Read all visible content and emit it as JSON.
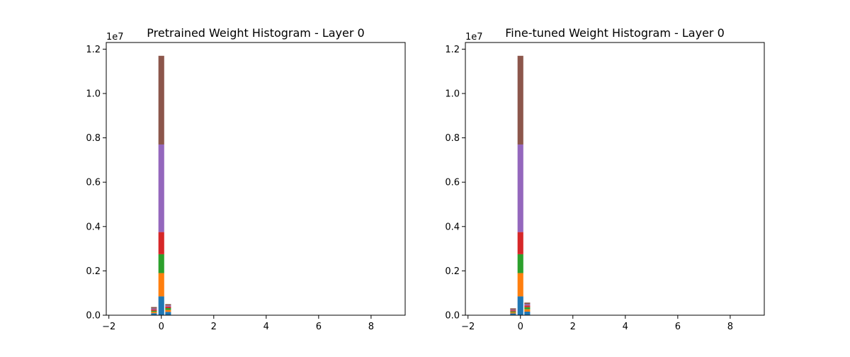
{
  "colors": [
    "#1f77b4",
    "#ff7f0e",
    "#2ca02c",
    "#d62728",
    "#9467bd",
    "#8c564b"
  ],
  "chart_data": [
    {
      "type": "bar",
      "stacked": true,
      "title": "Pretrained Weight Histogram - Layer 0",
      "xlabel": "",
      "ylabel": "",
      "xlim": [
        -2.1,
        9.3
      ],
      "ylim": [
        0,
        12300000.0
      ],
      "xticks": [
        -2,
        0,
        2,
        4,
        6,
        8
      ],
      "xtick_labels": [
        "−2",
        "0",
        "2",
        "4",
        "6",
        "8"
      ],
      "yticks": [
        0,
        0.2,
        0.4,
        0.6,
        0.8,
        1.0,
        1.2
      ],
      "ytick_labels": [
        "0.0",
        "0.2",
        "0.4",
        "0.6",
        "0.8",
        "1.0",
        "1.2"
      ],
      "y_offset_label": "1e7",
      "bin_width": 0.22,
      "bins": [
        -0.28,
        0.0,
        0.26
      ],
      "series": [
        {
          "values": [
            90000,
            850000,
            150000
          ]
        },
        {
          "values": [
            60000,
            1050000,
            90000
          ]
        },
        {
          "values": [
            50000,
            850000,
            80000
          ]
        },
        {
          "values": [
            60000,
            1000000,
            70000
          ]
        },
        {
          "values": [
            40000,
            3950000,
            50000
          ]
        },
        {
          "values": [
            70000,
            4000000,
            60000
          ]
        }
      ]
    },
    {
      "type": "bar",
      "stacked": true,
      "title": "Fine-tuned Weight Histogram - Layer 0",
      "xlabel": "",
      "ylabel": "",
      "xlim": [
        -2.1,
        9.3
      ],
      "ylim": [
        0,
        12300000.0
      ],
      "xticks": [
        -2,
        0,
        2,
        4,
        6,
        8
      ],
      "xtick_labels": [
        "−2",
        "0",
        "2",
        "4",
        "6",
        "8"
      ],
      "yticks": [
        0,
        0.2,
        0.4,
        0.6,
        0.8,
        1.0,
        1.2
      ],
      "ytick_labels": [
        "0.0",
        "0.2",
        "0.4",
        "0.6",
        "0.8",
        "1.0",
        "1.2"
      ],
      "y_offset_label": "1e7",
      "bin_width": 0.22,
      "bins": [
        -0.28,
        0.0,
        0.26
      ],
      "series": [
        {
          "values": [
            80000,
            850000,
            160000
          ]
        },
        {
          "values": [
            50000,
            1050000,
            110000
          ]
        },
        {
          "values": [
            40000,
            850000,
            90000
          ]
        },
        {
          "values": [
            50000,
            1000000,
            80000
          ]
        },
        {
          "values": [
            30000,
            3950000,
            60000
          ]
        },
        {
          "values": [
            60000,
            4000000,
            70000
          ]
        }
      ]
    }
  ]
}
